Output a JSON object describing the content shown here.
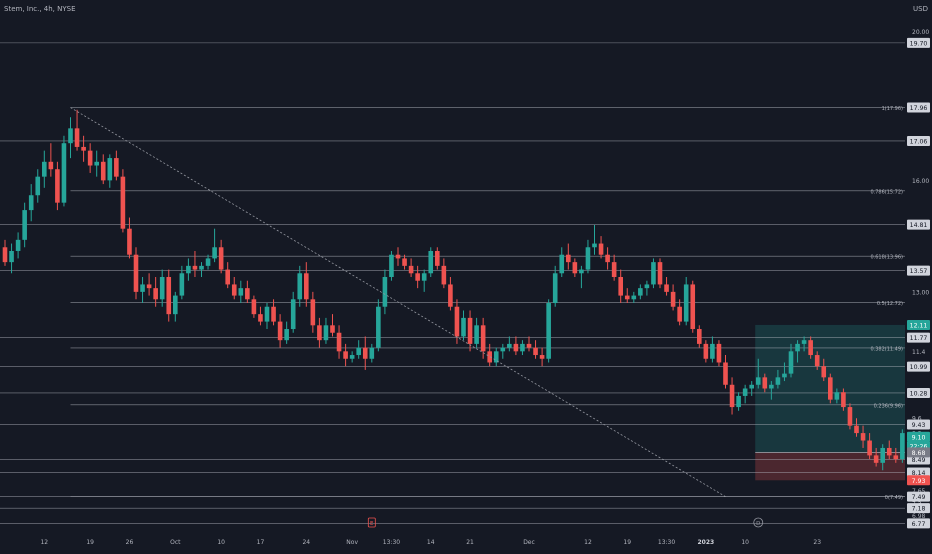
{
  "header": {
    "symbol": "Stem, Inc., 4h, NYSE",
    "currency": "USD"
  },
  "chart_data": {
    "type": "candlestick",
    "ylim": [
      6.7,
      20.1
    ],
    "y_ticks": [
      20.0,
      17.0,
      16.0,
      13.0,
      11.4,
      9.6,
      9.2,
      7.65,
      7.3,
      6.98
    ],
    "x_ticks": [
      {
        "i": 6,
        "label": "12"
      },
      {
        "i": 13,
        "label": "19"
      },
      {
        "i": 19,
        "label": "26"
      },
      {
        "i": 26,
        "label": "Oct"
      },
      {
        "i": 33,
        "label": "10"
      },
      {
        "i": 39,
        "label": "17"
      },
      {
        "i": 46,
        "label": "24"
      },
      {
        "i": 53,
        "label": "Nov"
      },
      {
        "i": 59,
        "label": "13:30"
      },
      {
        "i": 65,
        "label": "14"
      },
      {
        "i": 71,
        "label": "21"
      },
      {
        "i": 80,
        "label": "Dec"
      },
      {
        "i": 89,
        "label": "12"
      },
      {
        "i": 95,
        "label": "19"
      },
      {
        "i": 101,
        "label": "13:30"
      },
      {
        "i": 107,
        "label": "2023"
      },
      {
        "i": 113,
        "label": "10"
      },
      {
        "i": 124,
        "label": "23"
      }
    ],
    "price_lines": [
      {
        "y": 19.7,
        "label": "19.70"
      },
      {
        "y": 17.06,
        "label": "17.06"
      },
      {
        "y": 14.81,
        "label": "14.81"
      },
      {
        "y": 13.57,
        "label": "13.57"
      },
      {
        "y": 11.77,
        "label": "11.77"
      },
      {
        "y": 10.99,
        "label": "10.99"
      },
      {
        "y": 10.28,
        "label": "10.28"
      },
      {
        "y": 9.43,
        "label": "9.43"
      },
      {
        "y": 8.49,
        "label": "8.49"
      },
      {
        "y": 8.14,
        "label": "8.14"
      },
      {
        "y": 7.49,
        "label": "7.49"
      },
      {
        "y": 7.18,
        "label": "7.18"
      },
      {
        "y": 6.77,
        "label": "6.77"
      }
    ],
    "fib_levels": [
      {
        "y": 17.96,
        "label": "1(17.96)"
      },
      {
        "y": 15.72,
        "label": "0.786(15.72)"
      },
      {
        "y": 13.96,
        "label": "0.618(13.96)"
      },
      {
        "y": 12.72,
        "label": "0.5(12.72)"
      },
      {
        "y": 11.49,
        "label": "0.382(11.49)"
      },
      {
        "y": 9.96,
        "label": "0.236(9.96)"
      },
      {
        "y": 7.49,
        "label": "0(7.49)"
      }
    ],
    "highlight_labels": [
      {
        "y": 17.96,
        "label": "17.96",
        "style": "light"
      },
      {
        "y": 12.11,
        "label": "12.11",
        "style": "green"
      },
      {
        "y": 9.1,
        "label": "9.10",
        "style": "teal"
      },
      {
        "y": 8.85,
        "label": "22:26",
        "style": "teal"
      },
      {
        "y": 8.68,
        "label": "8.68",
        "style": "gray"
      },
      {
        "y": 7.93,
        "label": "7.93",
        "style": "red"
      }
    ],
    "position": {
      "start_i": 115,
      "entry": 8.68,
      "target": 12.11,
      "stop": 7.93
    },
    "trend_line": {
      "i1": 10,
      "y1": 17.96,
      "i2": 110,
      "y2": 7.49
    },
    "markers": [
      {
        "i": 56,
        "label": "E"
      },
      {
        "i": 115,
        "label": "D"
      }
    ],
    "candles": [
      [
        14.2,
        14.4,
        13.7,
        13.8
      ],
      [
        13.8,
        14.3,
        13.5,
        14.1
      ],
      [
        14.1,
        14.6,
        13.9,
        14.4
      ],
      [
        14.4,
        15.4,
        14.2,
        15.2
      ],
      [
        15.2,
        15.9,
        14.9,
        15.6
      ],
      [
        15.6,
        16.3,
        15.4,
        16.1
      ],
      [
        16.1,
        16.8,
        15.8,
        16.5
      ],
      [
        16.5,
        17.0,
        16.1,
        16.3
      ],
      [
        16.3,
        16.5,
        15.2,
        15.4
      ],
      [
        15.4,
        17.2,
        15.3,
        17.0
      ],
      [
        17.0,
        17.7,
        16.6,
        17.4
      ],
      [
        17.4,
        17.9,
        16.8,
        16.9
      ],
      [
        16.9,
        17.2,
        16.5,
        16.8
      ],
      [
        16.8,
        17.0,
        16.2,
        16.4
      ],
      [
        16.4,
        16.8,
        16.1,
        16.5
      ],
      [
        16.5,
        16.7,
        15.9,
        16.0
      ],
      [
        16.0,
        16.7,
        15.8,
        16.6
      ],
      [
        16.6,
        16.8,
        16.0,
        16.1
      ],
      [
        16.1,
        16.3,
        14.6,
        14.7
      ],
      [
        14.7,
        15.0,
        13.9,
        14.0
      ],
      [
        14.0,
        14.2,
        12.8,
        13.0
      ],
      [
        13.0,
        13.4,
        12.7,
        13.2
      ],
      [
        13.2,
        13.5,
        12.9,
        13.1
      ],
      [
        13.1,
        13.4,
        12.6,
        12.8
      ],
      [
        12.8,
        13.6,
        12.6,
        13.4
      ],
      [
        13.4,
        13.6,
        12.2,
        12.4
      ],
      [
        12.4,
        13.0,
        12.2,
        12.9
      ],
      [
        12.9,
        13.7,
        12.8,
        13.5
      ],
      [
        13.5,
        13.9,
        13.3,
        13.7
      ],
      [
        13.7,
        14.1,
        13.4,
        13.6
      ],
      [
        13.6,
        13.8,
        13.4,
        13.7
      ],
      [
        13.7,
        14.0,
        13.6,
        13.9
      ],
      [
        13.9,
        14.7,
        13.8,
        14.2
      ],
      [
        14.2,
        14.4,
        13.5,
        13.6
      ],
      [
        13.6,
        13.8,
        13.1,
        13.2
      ],
      [
        13.2,
        13.4,
        12.8,
        12.9
      ],
      [
        12.9,
        13.3,
        12.7,
        13.1
      ],
      [
        13.1,
        13.3,
        12.7,
        12.8
      ],
      [
        12.8,
        12.9,
        12.3,
        12.4
      ],
      [
        12.4,
        12.6,
        12.1,
        12.2
      ],
      [
        12.2,
        12.7,
        12.0,
        12.6
      ],
      [
        12.6,
        12.8,
        12.1,
        12.2
      ],
      [
        12.2,
        12.4,
        11.5,
        11.7
      ],
      [
        11.7,
        12.2,
        11.6,
        12.0
      ],
      [
        12.0,
        13.0,
        11.9,
        12.8
      ],
      [
        12.8,
        13.7,
        12.6,
        13.5
      ],
      [
        13.5,
        13.8,
        12.6,
        12.8
      ],
      [
        12.8,
        13.0,
        11.9,
        12.1
      ],
      [
        12.1,
        12.3,
        11.5,
        11.7
      ],
      [
        11.7,
        12.3,
        11.6,
        12.1
      ],
      [
        12.1,
        12.4,
        11.8,
        11.9
      ],
      [
        11.9,
        12.1,
        11.2,
        11.4
      ],
      [
        11.4,
        11.6,
        11.0,
        11.2
      ],
      [
        11.2,
        11.4,
        11.1,
        11.3
      ],
      [
        11.3,
        11.7,
        11.2,
        11.5
      ],
      [
        11.5,
        11.8,
        10.9,
        11.2
      ],
      [
        11.2,
        11.6,
        11.1,
        11.5
      ],
      [
        11.5,
        12.8,
        11.4,
        12.6
      ],
      [
        12.6,
        13.6,
        12.4,
        13.4
      ],
      [
        13.4,
        14.1,
        13.3,
        14.0
      ],
      [
        14.0,
        14.2,
        13.7,
        13.9
      ],
      [
        13.9,
        14.0,
        13.6,
        13.7
      ],
      [
        13.7,
        13.9,
        13.4,
        13.5
      ],
      [
        13.5,
        13.7,
        13.1,
        13.3
      ],
      [
        13.3,
        13.6,
        13.0,
        13.5
      ],
      [
        13.5,
        14.2,
        13.4,
        14.1
      ],
      [
        14.1,
        14.2,
        13.6,
        13.7
      ],
      [
        13.7,
        13.9,
        13.1,
        13.2
      ],
      [
        13.2,
        13.4,
        12.5,
        12.6
      ],
      [
        12.6,
        12.8,
        11.6,
        11.8
      ],
      [
        11.8,
        12.5,
        11.7,
        12.3
      ],
      [
        12.3,
        12.5,
        11.4,
        11.6
      ],
      [
        11.6,
        12.3,
        11.5,
        12.1
      ],
      [
        12.1,
        12.3,
        11.2,
        11.4
      ],
      [
        11.4,
        11.6,
        11.0,
        11.1
      ],
      [
        11.1,
        11.5,
        11.0,
        11.4
      ],
      [
        11.4,
        11.6,
        11.2,
        11.5
      ],
      [
        11.5,
        11.8,
        11.4,
        11.6
      ],
      [
        11.6,
        11.8,
        11.3,
        11.4
      ],
      [
        11.4,
        11.7,
        11.3,
        11.6
      ],
      [
        11.6,
        11.8,
        11.4,
        11.5
      ],
      [
        11.5,
        11.7,
        11.2,
        11.3
      ],
      [
        11.3,
        11.5,
        11.0,
        11.2
      ],
      [
        11.2,
        12.8,
        11.1,
        12.7
      ],
      [
        12.7,
        13.7,
        12.6,
        13.5
      ],
      [
        13.5,
        14.2,
        13.4,
        14.0
      ],
      [
        14.0,
        14.3,
        13.6,
        13.8
      ],
      [
        13.8,
        13.9,
        13.4,
        13.5
      ],
      [
        13.5,
        13.7,
        13.1,
        13.6
      ],
      [
        13.6,
        14.4,
        13.5,
        14.2
      ],
      [
        14.2,
        14.8,
        14.0,
        14.3
      ],
      [
        14.3,
        14.5,
        13.9,
        14.0
      ],
      [
        14.0,
        14.2,
        13.6,
        13.8
      ],
      [
        13.8,
        14.0,
        13.3,
        13.4
      ],
      [
        13.4,
        13.6,
        12.7,
        12.9
      ],
      [
        12.9,
        13.1,
        12.7,
        12.8
      ],
      [
        12.8,
        13.0,
        12.7,
        12.9
      ],
      [
        12.9,
        13.2,
        12.8,
        13.1
      ],
      [
        13.1,
        13.3,
        12.9,
        13.2
      ],
      [
        13.2,
        13.9,
        13.1,
        13.8
      ],
      [
        13.8,
        13.9,
        13.1,
        13.2
      ],
      [
        13.2,
        13.4,
        12.9,
        13.0
      ],
      [
        13.0,
        13.2,
        12.5,
        12.6
      ],
      [
        12.6,
        12.8,
        12.1,
        12.2
      ],
      [
        12.2,
        13.4,
        12.1,
        13.2
      ],
      [
        13.2,
        13.3,
        11.9,
        12.0
      ],
      [
        12.0,
        12.1,
        11.5,
        11.6
      ],
      [
        11.6,
        11.7,
        11.1,
        11.2
      ],
      [
        11.2,
        11.8,
        11.1,
        11.6
      ],
      [
        11.6,
        11.7,
        11.0,
        11.1
      ],
      [
        11.1,
        11.3,
        10.4,
        10.5
      ],
      [
        10.5,
        10.7,
        9.7,
        9.9
      ],
      [
        9.9,
        10.3,
        9.8,
        10.2
      ],
      [
        10.2,
        10.5,
        10.0,
        10.4
      ],
      [
        10.4,
        10.6,
        10.2,
        10.5
      ],
      [
        10.5,
        11.2,
        10.4,
        10.7
      ],
      [
        10.7,
        10.8,
        10.3,
        10.4
      ],
      [
        10.4,
        10.6,
        10.1,
        10.5
      ],
      [
        10.5,
        10.9,
        10.4,
        10.7
      ],
      [
        10.7,
        11.1,
        10.6,
        10.8
      ],
      [
        10.8,
        11.6,
        10.7,
        11.4
      ],
      [
        11.4,
        11.7,
        11.1,
        11.6
      ],
      [
        11.6,
        11.8,
        11.4,
        11.7
      ],
      [
        11.7,
        11.8,
        11.2,
        11.3
      ],
      [
        11.3,
        11.4,
        10.9,
        11.0
      ],
      [
        11.0,
        11.2,
        10.6,
        10.7
      ],
      [
        10.7,
        10.8,
        10.0,
        10.1
      ],
      [
        10.1,
        10.4,
        10.0,
        10.3
      ],
      [
        10.3,
        10.4,
        9.8,
        9.9
      ],
      [
        9.9,
        10.0,
        9.3,
        9.4
      ],
      [
        9.4,
        9.6,
        9.1,
        9.2
      ],
      [
        9.2,
        9.4,
        8.8,
        9.0
      ],
      [
        9.0,
        9.2,
        8.5,
        8.6
      ],
      [
        8.6,
        8.8,
        8.3,
        8.4
      ],
      [
        8.4,
        8.9,
        8.2,
        8.8
      ],
      [
        8.8,
        9.0,
        8.5,
        8.6
      ],
      [
        8.6,
        8.8,
        8.4,
        8.5
      ],
      [
        8.5,
        9.3,
        8.4,
        9.2
      ],
      [
        9.2,
        9.3,
        8.4,
        8.5
      ],
      [
        8.5,
        8.6,
        7.5,
        7.6
      ],
      [
        7.6,
        8.0,
        7.4,
        7.9
      ],
      [
        7.9,
        8.0,
        7.5,
        7.6
      ],
      [
        7.6,
        7.9,
        7.4,
        7.8
      ],
      [
        7.8,
        8.3,
        7.7,
        8.2
      ],
      [
        8.2,
        8.6,
        8.1,
        8.5
      ],
      [
        8.5,
        9.4,
        8.4,
        9.3
      ],
      [
        9.3,
        9.5,
        9.0,
        9.1
      ],
      [
        9.1,
        9.3,
        8.5,
        8.6
      ],
      [
        8.6,
        9.3,
        8.5,
        9.2
      ]
    ]
  }
}
